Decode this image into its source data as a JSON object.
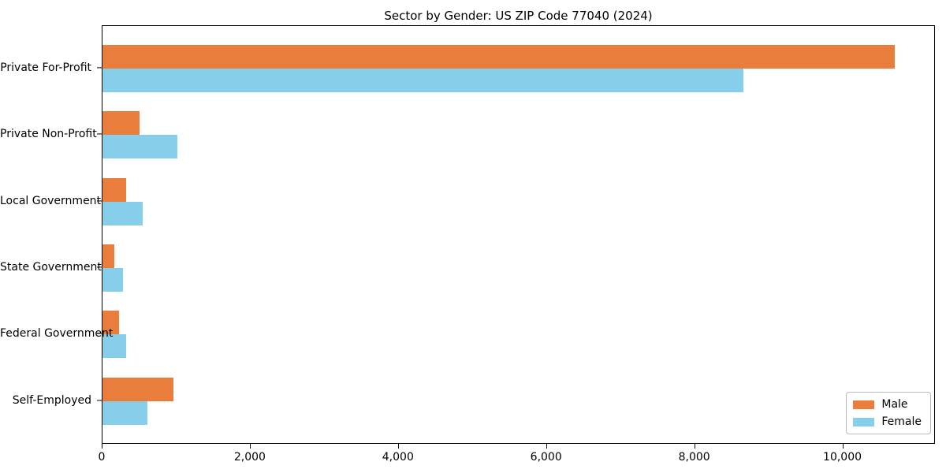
{
  "chart_data": {
    "type": "bar",
    "orientation": "horizontal",
    "title": "Sector by Gender: US ZIP Code 77040 (2024)",
    "categories": [
      "Private For-Profit",
      "Private Non-Profit",
      "Local Government",
      "State Government",
      "Federal Government",
      "Self-Employed"
    ],
    "series": [
      {
        "name": "Male",
        "color": "#e87d3c",
        "values": [
          10700,
          500,
          323,
          157,
          220,
          960
        ]
      },
      {
        "name": "Female",
        "color": "#87ceeb",
        "values": [
          8650,
          1010,
          543,
          277,
          316,
          610
        ]
      }
    ],
    "xlabel": "",
    "ylabel": "",
    "xlim": [
      0,
      11250
    ],
    "x_ticks": [
      0,
      2000,
      4000,
      6000,
      8000,
      10000
    ],
    "x_tick_labels": [
      "0",
      "2,000",
      "4,000",
      "6,000",
      "8,000",
      "10,000"
    ],
    "grid": false,
    "legend": {
      "position": "lower right",
      "entries": [
        "Male",
        "Female"
      ]
    }
  }
}
